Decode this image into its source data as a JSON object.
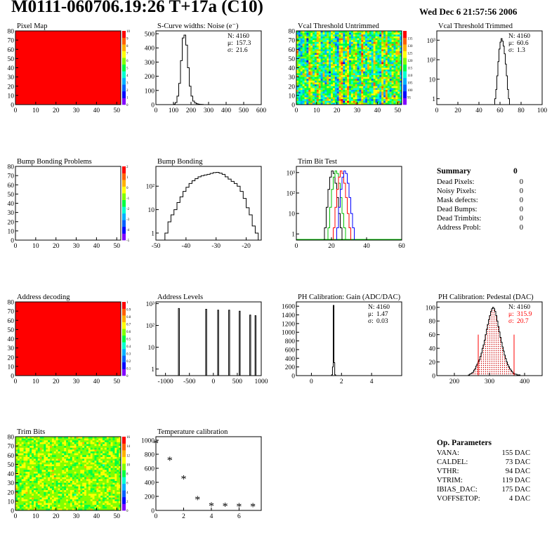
{
  "header": {
    "title": "M0111-060706.19:26 T+17a (C10)",
    "date": "Wed Dec  6 21:57:56 2006"
  },
  "chart_data": [
    {
      "id": "pixel-map",
      "type": "heatmap",
      "title": "Pixel Map",
      "xlim": [
        0,
        52
      ],
      "ylim": [
        0,
        80
      ],
      "xticks": [
        0,
        10,
        20,
        30,
        40,
        50
      ],
      "yticks": [
        0,
        10,
        20,
        30,
        40,
        50,
        60,
        70,
        80
      ],
      "fill": "uniform",
      "value": 10,
      "palette": [
        "#8000ff",
        "#0000ff",
        "#0060ff",
        "#00b0ff",
        "#00ffd0",
        "#00ff40",
        "#80ff00",
        "#ffff00",
        "#ffb000",
        "#ff6000",
        "#ff0000"
      ],
      "zticks": [
        0,
        1,
        2,
        3,
        4,
        5,
        6,
        7,
        8,
        9,
        10
      ],
      "zrange": [
        0,
        10
      ]
    },
    {
      "id": "s-curve-widths",
      "type": "histogram",
      "title": "S-Curve widths: Noise (e⁻)",
      "xlim": [
        0,
        600
      ],
      "ylim": [
        0,
        520
      ],
      "xticks": [
        0,
        100,
        200,
        300,
        400,
        500,
        600
      ],
      "yticks": [
        0,
        100,
        200,
        300,
        400,
        500
      ],
      "bins": {
        "start": 100,
        "width": 10,
        "counts": [
          4,
          15,
          60,
          150,
          310,
          470,
          490,
          420,
          260,
          130,
          60,
          25,
          12,
          6,
          3,
          2,
          1
        ]
      },
      "stats": [
        {
          "label": "N:",
          "value": "4160"
        },
        {
          "label": "μ:",
          "value": "157.3"
        },
        {
          "label": "σ:",
          "value": "21.6"
        }
      ]
    },
    {
      "id": "vcal-threshold-untrimmed",
      "type": "heatmap",
      "title": "Vcal Threshold Untrimmed",
      "xlim": [
        0,
        52
      ],
      "ylim": [
        0,
        80
      ],
      "xticks": [
        0,
        10,
        20,
        30,
        40,
        50
      ],
      "yticks": [
        0,
        10,
        20,
        30,
        40,
        50,
        60,
        70,
        80
      ],
      "fill": "noise-columns",
      "center": 0.55,
      "spread": 0.28,
      "seed": 7,
      "palette": [
        "#8000ff",
        "#0000ff",
        "#0060ff",
        "#00b0ff",
        "#00ffd0",
        "#00ff40",
        "#80ff00",
        "#ffff00",
        "#ffb000",
        "#ff6000",
        "#ff0000"
      ],
      "zticks": [
        95,
        100,
        105,
        110,
        115,
        120,
        125,
        130,
        135
      ],
      "zrange": [
        90,
        140
      ]
    },
    {
      "id": "vcal-threshold-trimmed",
      "type": "histogram",
      "title": "Vcal Threshold Trimmed",
      "logy": true,
      "xlim": [
        0,
        100
      ],
      "ylim": [
        0.5,
        3000
      ],
      "xticks": [
        0,
        20,
        40,
        60,
        80,
        100
      ],
      "yticks": [
        1,
        10,
        100,
        1000
      ],
      "yticklabels": [
        "1",
        "10",
        "10²",
        "10³"
      ],
      "bins": {
        "start": 55,
        "width": 1,
        "counts": [
          1,
          3,
          15,
          80,
          350,
          800,
          1200,
          900,
          500,
          200,
          60,
          15,
          3,
          1
        ]
      },
      "stats": [
        {
          "label": "N:",
          "value": "4160"
        },
        {
          "label": "μ:",
          "value": "60.6"
        },
        {
          "label": "σ:",
          "value": "1.3"
        }
      ]
    },
    {
      "id": "bump-bonding-problems",
      "type": "heatmap",
      "title": "Bump Bonding Problems",
      "xlim": [
        0,
        52
      ],
      "ylim": [
        0,
        80
      ],
      "xticks": [
        0,
        10,
        20,
        30,
        40,
        50
      ],
      "yticks": [
        0,
        10,
        20,
        30,
        40,
        50,
        60,
        70,
        80
      ],
      "fill": "empty",
      "palette": [
        "#8000ff",
        "#0000ff",
        "#0060ff",
        "#00b0ff",
        "#00ffd0",
        "#00ff40",
        "#80ff00",
        "#ffff00",
        "#ffb000",
        "#ff6000",
        "#ff0000"
      ],
      "zticks": [
        -5,
        -4,
        -3,
        -2,
        -1,
        0,
        1,
        2
      ],
      "zrange": [
        -5,
        2
      ]
    },
    {
      "id": "bump-bonding",
      "type": "histogram",
      "title": "Bump Bonding",
      "logy": true,
      "xlim": [
        -50,
        -15
      ],
      "ylim": [
        0.5,
        700
      ],
      "xticks": [
        -50,
        -40,
        -30,
        -20
      ],
      "yticks": [
        1,
        10,
        100
      ],
      "yticklabels": [
        "1",
        "10",
        "10²"
      ],
      "bins": {
        "start": -47,
        "width": 1,
        "counts": [
          1,
          3,
          6,
          10,
          20,
          35,
          60,
          90,
          130,
          170,
          210,
          250,
          280,
          300,
          320,
          350,
          380,
          390,
          360,
          320,
          250,
          200,
          160,
          130,
          100,
          60,
          30,
          12,
          6,
          2,
          1
        ]
      }
    },
    {
      "id": "trim-bit-test",
      "type": "histogram",
      "title": "Trim Bit Test",
      "logy": true,
      "xlim": [
        0,
        60
      ],
      "ylim": [
        0.5,
        2000
      ],
      "xticks": [
        0,
        20,
        40,
        60
      ],
      "yticks": [
        1,
        10,
        100,
        1000
      ],
      "yticklabels": [
        "1",
        "10",
        "10²",
        "10³"
      ],
      "series": [
        {
          "color": "#000000",
          "start": 16,
          "width": 1,
          "counts": [
            2,
            20,
            150,
            600,
            1200,
            900,
            300,
            60,
            10,
            2
          ]
        },
        {
          "color": "#00c000",
          "start": 18,
          "width": 1,
          "counts": [
            2,
            20,
            150,
            600,
            1200,
            900,
            300,
            60,
            10,
            2
          ]
        },
        {
          "color": "#ff0000",
          "start": 21,
          "width": 1,
          "counts": [
            2,
            20,
            150,
            600,
            1200,
            900,
            300,
            60,
            10,
            2
          ]
        },
        {
          "color": "#0000ff",
          "start": 23,
          "width": 1,
          "counts": [
            2,
            20,
            150,
            600,
            1200,
            900,
            300,
            60,
            10,
            2
          ]
        }
      ],
      "baseline_color": "#00c000"
    },
    {
      "id": "address-decoding",
      "type": "heatmap",
      "title": "Address decoding",
      "xlim": [
        0,
        52
      ],
      "ylim": [
        0,
        80
      ],
      "xticks": [
        0,
        10,
        20,
        30,
        40,
        50
      ],
      "yticks": [
        0,
        10,
        20,
        30,
        40,
        50,
        60,
        70,
        80
      ],
      "fill": "uniform",
      "value": 1,
      "palette": [
        "#8000ff",
        "#0000ff",
        "#0060ff",
        "#00b0ff",
        "#00ffd0",
        "#00ff40",
        "#80ff00",
        "#ffff00",
        "#ffb000",
        "#ff6000",
        "#ff0000"
      ],
      "zticks": [
        0,
        0.1,
        0.2,
        0.3,
        0.4,
        0.5,
        0.6,
        0.7,
        0.8,
        0.9,
        1
      ],
      "zrange": [
        0,
        1
      ]
    },
    {
      "id": "address-levels",
      "type": "spikes",
      "title": "Address Levels",
      "logy": true,
      "xlim": [
        -1200,
        1000
      ],
      "ylim": [
        0.5,
        1200
      ],
      "xticks": [
        -1000,
        -500,
        0,
        500,
        1000
      ],
      "yticks": [
        1,
        10,
        100,
        1000
      ],
      "yticklabels": [
        "1",
        "10",
        "10²",
        "10³"
      ],
      "spikes": [
        {
          "x": -720,
          "h": 600,
          "w": 20
        },
        {
          "x": -150,
          "h": 550,
          "w": 20
        },
        {
          "x": 100,
          "h": 500,
          "w": 20
        },
        {
          "x": 330,
          "h": 500,
          "w": 20
        },
        {
          "x": 550,
          "h": 450,
          "w": 20
        },
        {
          "x": 770,
          "h": 300,
          "w": 20
        },
        {
          "x": 880,
          "h": 280,
          "w": 20
        }
      ]
    },
    {
      "id": "ph-calibration-gain",
      "type": "histogram",
      "title": "PH Calibration: Gain (ADC/DAC)",
      "xlim": [
        -1,
        6
      ],
      "ylim": [
        0,
        1700
      ],
      "xticks": [
        0,
        2,
        4
      ],
      "yticks": [
        0,
        200,
        400,
        600,
        800,
        1000,
        1200,
        1400,
        1600
      ],
      "bins": {
        "start": 1.3,
        "width": 0.05,
        "counts": [
          2,
          20,
          200,
          1620,
          300,
          20,
          2
        ]
      },
      "stats": [
        {
          "label": "N:",
          "value": "4160"
        },
        {
          "label": "μ:",
          "value": "1.47"
        },
        {
          "label": "σ:",
          "value": "0.03"
        }
      ]
    },
    {
      "id": "ph-calibration-pedestal",
      "type": "histogram",
      "title": "PH Calibration: Pedestal (DAC)",
      "xlim": [
        150,
        450
      ],
      "ylim": [
        0,
        108
      ],
      "xticks": [
        200,
        300,
        400
      ],
      "yticks": [
        0,
        20,
        40,
        60,
        80,
        100
      ],
      "bins": {
        "start": 240,
        "width": 3,
        "counts": [
          1,
          2,
          3,
          4,
          5,
          8,
          10,
          14,
          17,
          20,
          23,
          28,
          33,
          40,
          45,
          52,
          60,
          68,
          75,
          82,
          88,
          94,
          98,
          100,
          98,
          94,
          88,
          80,
          72,
          64,
          56,
          49,
          42,
          36,
          30,
          25,
          20,
          16,
          13,
          10,
          8,
          6,
          4,
          3,
          2,
          2,
          1,
          1,
          1
        ]
      },
      "fill_pattern": true,
      "markers": [
        {
          "x": 268,
          "h": 60,
          "color": "#ff0000"
        },
        {
          "x": 370,
          "h": 60,
          "color": "#ff0000"
        }
      ],
      "stats": [
        {
          "label": "N:",
          "value": "4160"
        },
        {
          "label": "μ:",
          "value": "315.9",
          "color": "#ff0000"
        },
        {
          "label": "σ:",
          "value": "20.7",
          "color": "#ff0000"
        }
      ]
    },
    {
      "id": "trim-bits",
      "type": "heatmap",
      "title": "Trim Bits",
      "xlim": [
        0,
        52
      ],
      "ylim": [
        0,
        80
      ],
      "xticks": [
        0,
        10,
        20,
        30,
        40,
        50
      ],
      "yticks": [
        0,
        10,
        20,
        30,
        40,
        50,
        60,
        70,
        80
      ],
      "fill": "noise",
      "center": 0.6,
      "spread": 0.15,
      "seed": 3,
      "palette": [
        "#8000ff",
        "#0000ff",
        "#0060ff",
        "#00b0ff",
        "#00ffd0",
        "#00ff40",
        "#80ff00",
        "#ffff00",
        "#ffb000",
        "#ff6000",
        "#ff0000"
      ],
      "zticks": [
        0,
        2,
        4,
        6,
        8,
        10,
        12,
        14,
        16
      ],
      "zrange": [
        0,
        16
      ]
    },
    {
      "id": "temperature-calibration",
      "type": "scatter",
      "title": "Temperature calibration",
      "xlim": [
        0,
        7.6
      ],
      "ylim": [
        0,
        1050
      ],
      "xticks": [
        0,
        2,
        4,
        6
      ],
      "yticks": [
        0,
        200,
        400,
        600,
        800,
        1000
      ],
      "marker": "*",
      "points": [
        [
          0,
          960
        ],
        [
          1,
          720
        ],
        [
          2,
          455
        ],
        [
          3,
          160
        ],
        [
          4,
          70
        ],
        [
          5,
          65
        ],
        [
          6,
          60
        ],
        [
          7,
          60
        ]
      ]
    }
  ],
  "summary": {
    "title": "Summary",
    "total": "0",
    "rows": [
      {
        "label": "Dead Pixels:",
        "value": "0"
      },
      {
        "label": "Noisy Pixels:",
        "value": "0"
      },
      {
        "label": "Mask defects:",
        "value": "0"
      },
      {
        "label": "Dead Bumps:",
        "value": "0"
      },
      {
        "label": "Dead Trimbits:",
        "value": "0"
      },
      {
        "label": "Address Probl:",
        "value": "0"
      }
    ]
  },
  "op_parameters": {
    "title": "Op. Parameters",
    "rows": [
      {
        "label": "VANA:",
        "value": "155 DAC"
      },
      {
        "label": "CALDEL:",
        "value": "73 DAC"
      },
      {
        "label": "VTHR:",
        "value": "94 DAC"
      },
      {
        "label": "VTRIM:",
        "value": "119 DAC"
      },
      {
        "label": "IBIAS_DAC:",
        "value": "175 DAC"
      },
      {
        "label": "VOFFSETOP:",
        "value": "4 DAC"
      }
    ]
  }
}
